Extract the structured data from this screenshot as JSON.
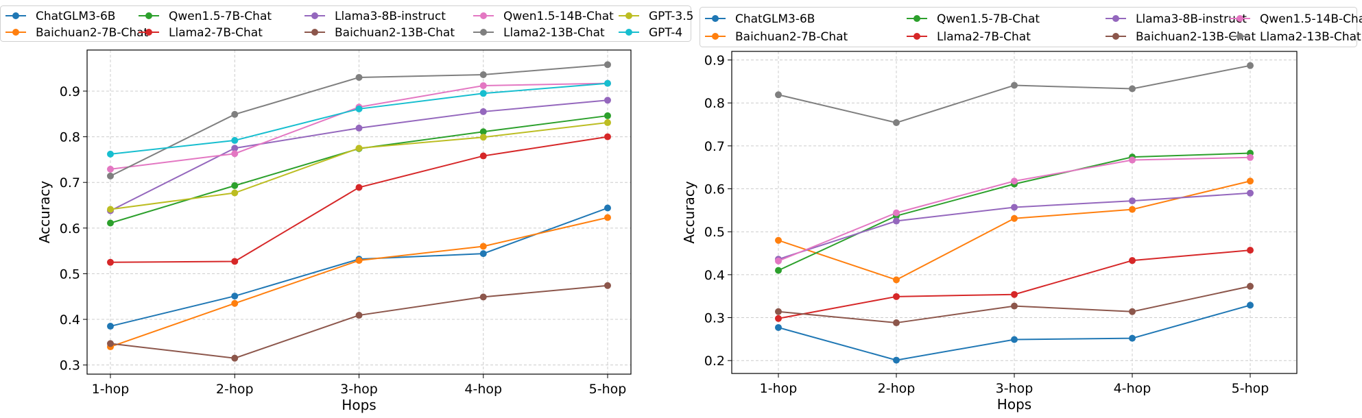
{
  "chart_data": [
    {
      "type": "line",
      "xlabel": "Hops",
      "ylabel": "Accuracy",
      "categories": [
        "1-hop",
        "2-hop",
        "3-hop",
        "4-hop",
        "5-hop"
      ],
      "ylim": [
        0.28,
        0.99
      ],
      "yticks": [
        "0.3",
        "0.4",
        "0.5",
        "0.6",
        "0.7",
        "0.8",
        "0.9"
      ],
      "grid": true,
      "legend_position": "top, above plot",
      "series": [
        {
          "name": "ChatGLM3-6B",
          "color": "#1f77b4",
          "values": [
            0.385,
            0.451,
            0.532,
            0.544,
            0.644
          ]
        },
        {
          "name": "Baichuan2-7B-Chat",
          "color": "#ff7f0e",
          "values": [
            0.34,
            0.435,
            0.529,
            0.56,
            0.623
          ]
        },
        {
          "name": "Qwen1.5-7B-Chat",
          "color": "#2ca02c",
          "values": [
            0.611,
            0.693,
            0.774,
            0.811,
            0.846
          ]
        },
        {
          "name": "Llama2-7B-Chat",
          "color": "#d62728",
          "values": [
            0.525,
            0.527,
            0.689,
            0.758,
            0.8
          ]
        },
        {
          "name": "Llama3-8B-instruct",
          "color": "#9467bd",
          "values": [
            0.638,
            0.775,
            0.819,
            0.855,
            0.88
          ]
        },
        {
          "name": "Baichuan2-13B-Chat",
          "color": "#8c564b",
          "values": [
            0.347,
            0.315,
            0.409,
            0.449,
            0.474
          ]
        },
        {
          "name": "Qwen1.5-14B-Chat",
          "color": "#e377c2",
          "values": [
            0.729,
            0.763,
            0.865,
            0.912,
            0.917
          ]
        },
        {
          "name": "Llama2-13B-Chat",
          "color": "#7f7f7f",
          "values": [
            0.714,
            0.849,
            0.93,
            0.936,
            0.958
          ]
        },
        {
          "name": "GPT-3.5",
          "color": "#bcbd22",
          "values": [
            0.641,
            0.677,
            0.775,
            0.799,
            0.831
          ]
        },
        {
          "name": "GPT-4",
          "color": "#17becf",
          "values": [
            0.762,
            0.792,
            0.861,
            0.895,
            0.917
          ]
        }
      ]
    },
    {
      "type": "line",
      "xlabel": "Hops",
      "ylabel": "Accuracy",
      "categories": [
        "1-hop",
        "2-hop",
        "3-hop",
        "4-hop",
        "5-hop"
      ],
      "ylim": [
        0.17,
        0.92
      ],
      "yticks": [
        "0.2",
        "0.3",
        "0.4",
        "0.5",
        "0.6",
        "0.7",
        "0.8",
        "0.9"
      ],
      "grid": true,
      "legend_position": "top, above plot",
      "series": [
        {
          "name": "ChatGLM3-6B",
          "color": "#1f77b4",
          "values": [
            0.277,
            0.201,
            0.249,
            0.252,
            0.329
          ]
        },
        {
          "name": "Baichuan2-7B-Chat",
          "color": "#ff7f0e",
          "values": [
            0.48,
            0.388,
            0.531,
            0.552,
            0.618
          ]
        },
        {
          "name": "Qwen1.5-7B-Chat",
          "color": "#2ca02c",
          "values": [
            0.41,
            0.537,
            0.611,
            0.674,
            0.683
          ]
        },
        {
          "name": "Llama2-7B-Chat",
          "color": "#d62728",
          "values": [
            0.298,
            0.349,
            0.354,
            0.433,
            0.457
          ]
        },
        {
          "name": "Llama3-8B-instruct",
          "color": "#9467bd",
          "values": [
            0.436,
            0.525,
            0.557,
            0.572,
            0.59
          ]
        },
        {
          "name": "Baichuan2-13B-Chat",
          "color": "#8c564b",
          "values": [
            0.314,
            0.288,
            0.327,
            0.314,
            0.373
          ]
        },
        {
          "name": "Qwen1.5-14B-Chat",
          "color": "#e377c2",
          "values": [
            0.432,
            0.544,
            0.618,
            0.667,
            0.673
          ]
        },
        {
          "name": "Llama2-13B-Chat",
          "color": "#7f7f7f",
          "values": [
            0.819,
            0.754,
            0.841,
            0.833,
            0.887
          ]
        }
      ]
    }
  ]
}
